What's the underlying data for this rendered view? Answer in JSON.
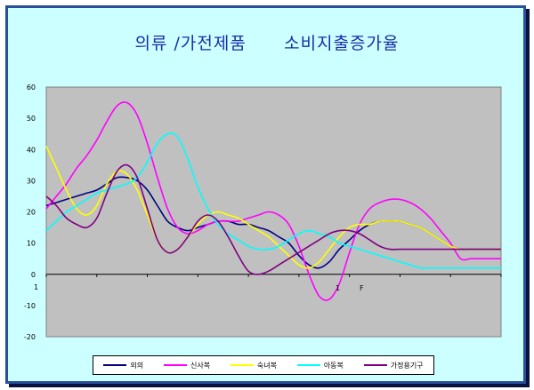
{
  "title": "의류 /가전제품      소비지출증가율",
  "chart_data": {
    "type": "line",
    "title": "의류 /가전제품      소비지출증가율",
    "xlabel": "",
    "ylabel": "",
    "ylim": [
      -20,
      60
    ],
    "yticks": [
      "60",
      "50",
      "40",
      "30",
      "20",
      "10",
      "0",
      "-10",
      "-20"
    ],
    "ytick_values": [
      60,
      50,
      40,
      30,
      20,
      10,
      0,
      -10,
      -20
    ],
    "extra_labels": [
      "1",
      "1",
      "F"
    ],
    "x": [
      0,
      1,
      2,
      3,
      4,
      5,
      6,
      7,
      8,
      9,
      10,
      11,
      12,
      13,
      14,
      15,
      16,
      17,
      18,
      19,
      20,
      21,
      22,
      23,
      24,
      25,
      26,
      27,
      28,
      29,
      30,
      31,
      32,
      33,
      34,
      35,
      36,
      37,
      38,
      39,
      40,
      41,
      42,
      43,
      44,
      45
    ],
    "grid": false,
    "legend_position": "bottom",
    "plot_background": "#c0c0c0",
    "series": [
      {
        "name": "외의",
        "color": "#000080",
        "values": [
          22,
          23,
          24,
          25,
          26,
          27,
          29,
          31,
          31,
          30,
          27,
          22,
          17,
          15,
          14,
          15,
          16,
          17,
          17,
          16,
          16,
          15,
          14,
          12,
          10,
          6,
          3,
          2,
          4,
          8,
          11,
          14,
          16,
          17,
          17,
          17,
          16,
          15,
          13,
          11,
          9,
          8,
          8,
          8,
          8,
          8
        ]
      },
      {
        "name": "신사복",
        "color": "#ff00ff",
        "values": [
          21,
          25,
          29,
          34,
          38,
          43,
          49,
          54,
          55,
          51,
          42,
          31,
          21,
          15,
          13,
          14,
          16,
          17,
          17,
          17,
          18,
          19,
          20,
          19,
          16,
          9,
          0,
          -7,
          -8,
          -3,
          7,
          16,
          21,
          23,
          24,
          24,
          23,
          21,
          18,
          14,
          10,
          5,
          5,
          5,
          5,
          5
        ]
      },
      {
        "name": "숙녀복",
        "color": "#ffff00",
        "values": [
          41,
          34,
          27,
          21,
          19,
          22,
          29,
          33,
          32,
          27,
          19,
          11,
          7,
          8,
          12,
          16,
          19,
          20,
          19,
          18,
          16,
          14,
          12,
          9,
          6,
          3,
          2,
          4,
          8,
          12,
          15,
          16,
          16,
          17,
          17,
          17,
          16,
          15,
          13,
          11,
          9,
          8,
          8,
          8,
          8,
          8
        ]
      },
      {
        "name": "아동복",
        "color": "#00ffff",
        "values": [
          14,
          17,
          20,
          22,
          24,
          26,
          27,
          28,
          29,
          31,
          36,
          42,
          45,
          44,
          37,
          28,
          21,
          16,
          13,
          11,
          9,
          8,
          8,
          9,
          11,
          13,
          14,
          13,
          12,
          10,
          9,
          8,
          7,
          6,
          5,
          4,
          3,
          2,
          2,
          2,
          2,
          2,
          2,
          2,
          2,
          2
        ]
      },
      {
        "name": "가정용기구",
        "color": "#800080",
        "values": [
          25,
          22,
          18,
          16,
          15,
          18,
          26,
          33,
          35,
          31,
          21,
          11,
          7,
          8,
          12,
          17,
          19,
          17,
          12,
          6,
          1,
          0,
          1,
          3,
          5,
          7,
          9,
          11,
          13,
          14,
          14,
          13,
          11,
          9,
          8,
          8,
          8,
          8,
          8,
          8,
          8,
          8,
          8,
          8,
          8,
          8
        ]
      }
    ]
  }
}
